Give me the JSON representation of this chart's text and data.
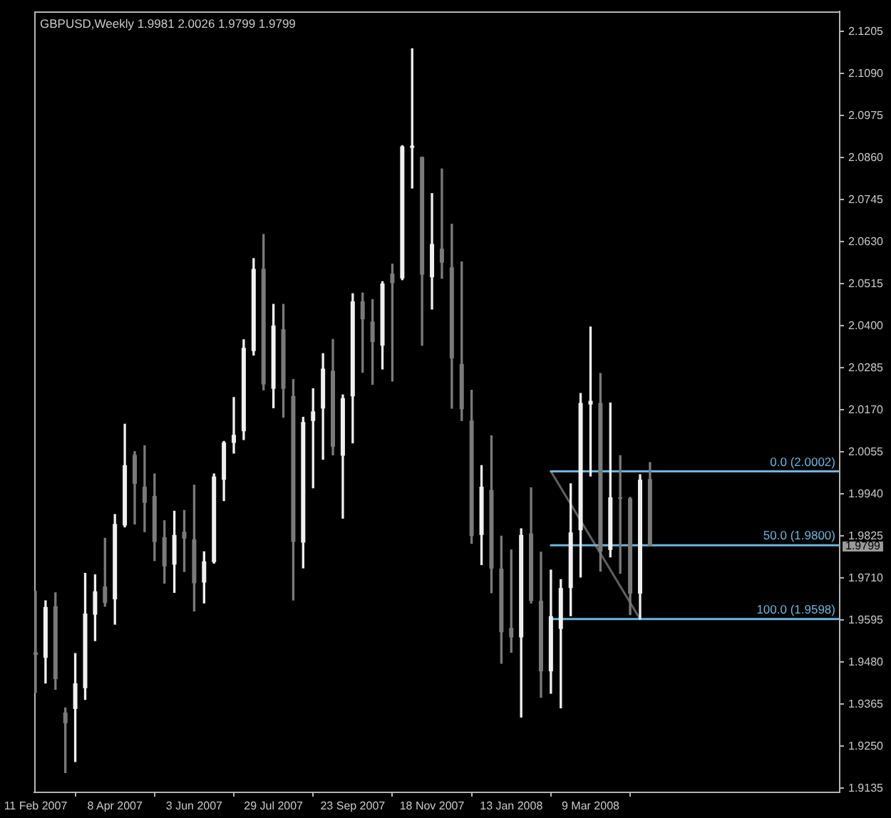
{
  "chart_data": {
    "type": "candlestick",
    "title": "GBPUSD,Weekly 1.9981 2.0026 1.9799 1.9799",
    "x": [
      "2007-02-11",
      "2007-02-18",
      "2007-02-25",
      "2007-03-04",
      "2007-03-11",
      "2007-03-18",
      "2007-03-25",
      "2007-04-01",
      "2007-04-08",
      "2007-04-15",
      "2007-04-22",
      "2007-04-29",
      "2007-05-06",
      "2007-05-13",
      "2007-05-20",
      "2007-05-27",
      "2007-06-03",
      "2007-06-10",
      "2007-06-17",
      "2007-06-24",
      "2007-07-01",
      "2007-07-08",
      "2007-07-15",
      "2007-07-22",
      "2007-07-29",
      "2007-08-05",
      "2007-08-12",
      "2007-08-19",
      "2007-08-26",
      "2007-09-02",
      "2007-09-09",
      "2007-09-16",
      "2007-09-23",
      "2007-09-30",
      "2007-10-07",
      "2007-10-14",
      "2007-10-21",
      "2007-10-28",
      "2007-11-04",
      "2007-11-11",
      "2007-11-18",
      "2007-11-25",
      "2007-12-02",
      "2007-12-09",
      "2007-12-16",
      "2007-12-23",
      "2007-12-30",
      "2008-01-06",
      "2008-01-13",
      "2008-01-20",
      "2008-01-27",
      "2008-02-03",
      "2008-02-10",
      "2008-02-17",
      "2008-02-24",
      "2008-03-02",
      "2008-03-09",
      "2008-03-16",
      "2008-03-23",
      "2008-03-30",
      "2008-04-06",
      "2008-04-13",
      "2008-04-20"
    ],
    "ohlc": [
      [
        1.9507,
        1.9674,
        1.9397,
        1.95
      ],
      [
        1.9492,
        1.9648,
        1.9423,
        1.9631
      ],
      [
        1.9633,
        1.967,
        1.9406,
        1.9434
      ],
      [
        1.9342,
        1.9355,
        1.9178,
        1.9313
      ],
      [
        1.9352,
        1.9504,
        1.9208,
        1.9422
      ],
      [
        1.9409,
        1.9723,
        1.9378,
        1.9613
      ],
      [
        1.961,
        1.9719,
        1.9539,
        1.9674
      ],
      [
        1.9687,
        1.9819,
        1.9633,
        1.9642
      ],
      [
        1.9652,
        1.9884,
        1.9584,
        1.9858
      ],
      [
        1.9854,
        2.0131,
        1.985,
        2.0019
      ],
      [
        2.0047,
        2.0056,
        1.9858,
        1.9968
      ],
      [
        1.996,
        2.0072,
        1.9837,
        1.9916
      ],
      [
        1.9935,
        1.9995,
        1.9758,
        1.9809
      ],
      [
        1.9822,
        1.9867,
        1.9696,
        1.9742
      ],
      [
        1.9747,
        1.9893,
        1.9671,
        1.9828
      ],
      [
        1.9837,
        1.9895,
        1.9728,
        1.9818
      ],
      [
        1.9816,
        1.9964,
        1.962,
        1.9696
      ],
      [
        1.9698,
        1.9782,
        1.9642,
        1.9756
      ],
      [
        1.9754,
        1.9995,
        1.9751,
        1.9988
      ],
      [
        1.9979,
        2.0084,
        1.9922,
        2.0081
      ],
      [
        2.008,
        2.0204,
        2.0052,
        2.0102
      ],
      [
        2.0112,
        2.0362,
        2.0089,
        2.034
      ],
      [
        2.0331,
        2.0584,
        2.032,
        2.0556
      ],
      [
        2.0556,
        2.065,
        2.0225,
        2.024
      ],
      [
        2.0228,
        2.0459,
        2.0176,
        2.0401
      ],
      [
        2.0391,
        2.0459,
        2.015,
        2.0228
      ],
      [
        2.0208,
        2.0253,
        1.965,
        1.9809
      ],
      [
        1.9807,
        2.015,
        1.9738,
        2.0137
      ],
      [
        2.014,
        2.0228,
        1.9957,
        2.0166
      ],
      [
        2.0174,
        2.0324,
        2.0035,
        2.0283
      ],
      [
        2.0277,
        2.0363,
        2.0047,
        2.0069
      ],
      [
        2.0045,
        2.0211,
        1.9874,
        2.0202
      ],
      [
        2.0207,
        2.0488,
        2.008,
        2.0467
      ],
      [
        2.0467,
        2.049,
        2.0273,
        2.0418
      ],
      [
        2.0412,
        2.0472,
        2.024,
        2.0356
      ],
      [
        2.0346,
        2.0521,
        2.0282,
        2.0516
      ],
      [
        2.0543,
        2.0569,
        2.0249,
        2.0517
      ],
      [
        2.053,
        2.0893,
        2.0526,
        2.0891
      ],
      [
        2.0887,
        2.1158,
        2.0777,
        2.0893
      ],
      [
        2.0862,
        2.0862,
        2.0347,
        2.054
      ],
      [
        2.0533,
        2.0762,
        2.0446,
        2.0624
      ],
      [
        2.0611,
        2.0829,
        2.053,
        2.0573
      ],
      [
        2.056,
        2.0678,
        2.0175,
        2.0311
      ],
      [
        2.0296,
        2.0575,
        2.0141,
        2.0172
      ],
      [
        2.0141,
        2.0224,
        1.9805,
        1.9825
      ],
      [
        1.9828,
        2.0018,
        1.9747,
        1.996
      ],
      [
        1.9951,
        2.0099,
        1.967,
        1.9736
      ],
      [
        1.9736,
        1.9825,
        1.9477,
        1.9562
      ],
      [
        1.9574,
        1.9787,
        1.9507,
        1.9548
      ],
      [
        1.9548,
        1.9845,
        1.933,
        1.9828
      ],
      [
        1.9832,
        1.9957,
        1.9642,
        1.9648
      ],
      [
        1.9648,
        1.9781,
        1.9384,
        1.9455
      ],
      [
        1.9455,
        1.9732,
        1.9395,
        1.9606
      ],
      [
        1.9571,
        1.9706,
        1.9355,
        1.9683
      ],
      [
        1.9683,
        1.9968,
        1.9607,
        1.9835
      ],
      [
        1.9841,
        2.0215,
        1.9713,
        2.0189
      ],
      [
        2.0185,
        2.0397,
        1.9989,
        2.0195
      ],
      [
        2.0189,
        2.027,
        1.9729,
        1.9783
      ],
      [
        1.9787,
        2.0189,
        1.9768,
        1.9931
      ],
      [
        1.9931,
        2.0045,
        1.9723,
        1.9927
      ],
      [
        1.9928,
        1.9931,
        1.961,
        1.9668
      ],
      [
        1.9668,
        1.9993,
        1.9598,
        1.9979
      ],
      [
        1.9981,
        2.0026,
        1.9799,
        1.9799
      ]
    ],
    "colors": [
      "#7a7a7a",
      "#f0f0f0",
      "#7a7a7a",
      "#7a7a7a",
      "#f0f0f0",
      "#f0f0f0",
      "#f0f0f0",
      "#7a7a7a",
      "#f0f0f0",
      "#f0f0f0",
      "#7a7a7a",
      "#7a7a7a",
      "#7a7a7a",
      "#7a7a7a",
      "#f0f0f0",
      "#7a7a7a",
      "#7a7a7a",
      "#f0f0f0",
      "#f0f0f0",
      "#f0f0f0",
      "#f0f0f0",
      "#f0f0f0",
      "#f0f0f0",
      "#7a7a7a",
      "#f0f0f0",
      "#7a7a7a",
      "#7a7a7a",
      "#f0f0f0",
      "#f0f0f0",
      "#f0f0f0",
      "#7a7a7a",
      "#f0f0f0",
      "#f0f0f0",
      "#7a7a7a",
      "#7a7a7a",
      "#f0f0f0",
      "#7a7a7a",
      "#f0f0f0",
      "#f0f0f0",
      "#7a7a7a",
      "#f0f0f0",
      "#7a7a7a",
      "#7a7a7a",
      "#7a7a7a",
      "#7a7a7a",
      "#f0f0f0",
      "#7a7a7a",
      "#7a7a7a",
      "#7a7a7a",
      "#f0f0f0",
      "#7a7a7a",
      "#7a7a7a",
      "#f0f0f0",
      "#f0f0f0",
      "#f0f0f0",
      "#f0f0f0",
      "#f0f0f0",
      "#7a7a7a",
      "#f0f0f0",
      "#7a7a7a",
      "#7a7a7a",
      "#f0f0f0",
      "#7a7a7a"
    ],
    "series": [
      {
        "type": "line",
        "color": "#6cb6dc",
        "x": [
          "2008-02-10",
          "2008-09-01"
        ],
        "values": [
          2.0002,
          2.0002
        ]
      },
      {
        "type": "line",
        "color": "#6cb6dc",
        "x": [
          "2008-02-10",
          "2008-09-01"
        ],
        "values": [
          1.98,
          1.98
        ]
      },
      {
        "type": "line",
        "color": "#6cb6dc",
        "x": [
          "2008-02-10",
          "2008-09-01"
        ],
        "values": [
          1.9598,
          1.9598
        ]
      },
      {
        "type": "line",
        "color": "#5f5f5f",
        "x": [
          "2008-02-10",
          "2008-04-13"
        ],
        "values": [
          2.0002,
          1.9598
        ]
      }
    ],
    "annotations": [
      {
        "text": "0.0 (2.0002)",
        "x": "2008-09-01",
        "y": 2.0002
      },
      {
        "text": "50.0 (1.9800)",
        "x": "2008-09-01",
        "y": 1.98
      },
      {
        "text": "100.0 (1.9598)",
        "x": "2008-09-01",
        "y": 1.9598
      },
      "1.9799"
    ],
    "xlim": [
      "2007-02-10",
      "2008-09-01"
    ],
    "xticks": [
      {
        "value": "2007-02-11",
        "label": "11 Feb 2007"
      },
      {
        "value": "2007-04-08",
        "label": "8 Apr 2007"
      },
      {
        "value": "2007-06-03",
        "label": "3 Jun 2007"
      },
      {
        "value": "2007-07-29",
        "label": "29 Jul 2007"
      },
      {
        "value": "2007-09-23",
        "label": "23 Sep 2007"
      },
      {
        "value": "2007-11-18",
        "label": "18 Nov 2007"
      },
      {
        "value": "2008-01-13",
        "label": "13 Jan 2008"
      },
      {
        "value": "2008-03-09",
        "label": "9 Mar 2008"
      }
    ],
    "ylim": [
      1.9124,
      2.1261
    ],
    "yticks": [
      1.9135,
      {
        "value": 1.925,
        "label": "1.9250"
      },
      1.9365,
      {
        "value": 1.948,
        "label": "1.9480"
      },
      1.9595,
      {
        "value": 1.971,
        "label": "1.9710"
      },
      1.9825,
      {
        "value": 1.994,
        "label": "1.9940"
      },
      2.0055,
      {
        "value": 2.017,
        "label": "2.0170"
      },
      2.0285,
      {
        "value": 2.04,
        "label": "2.0400"
      },
      2.0515,
      {
        "value": 2.063,
        "label": "2.0630"
      },
      2.0745,
      {
        "value": 2.086,
        "label": "2.0860"
      },
      2.0975,
      {
        "value": 2.109,
        "label": "2.1090"
      },
      2.1205
    ]
  }
}
